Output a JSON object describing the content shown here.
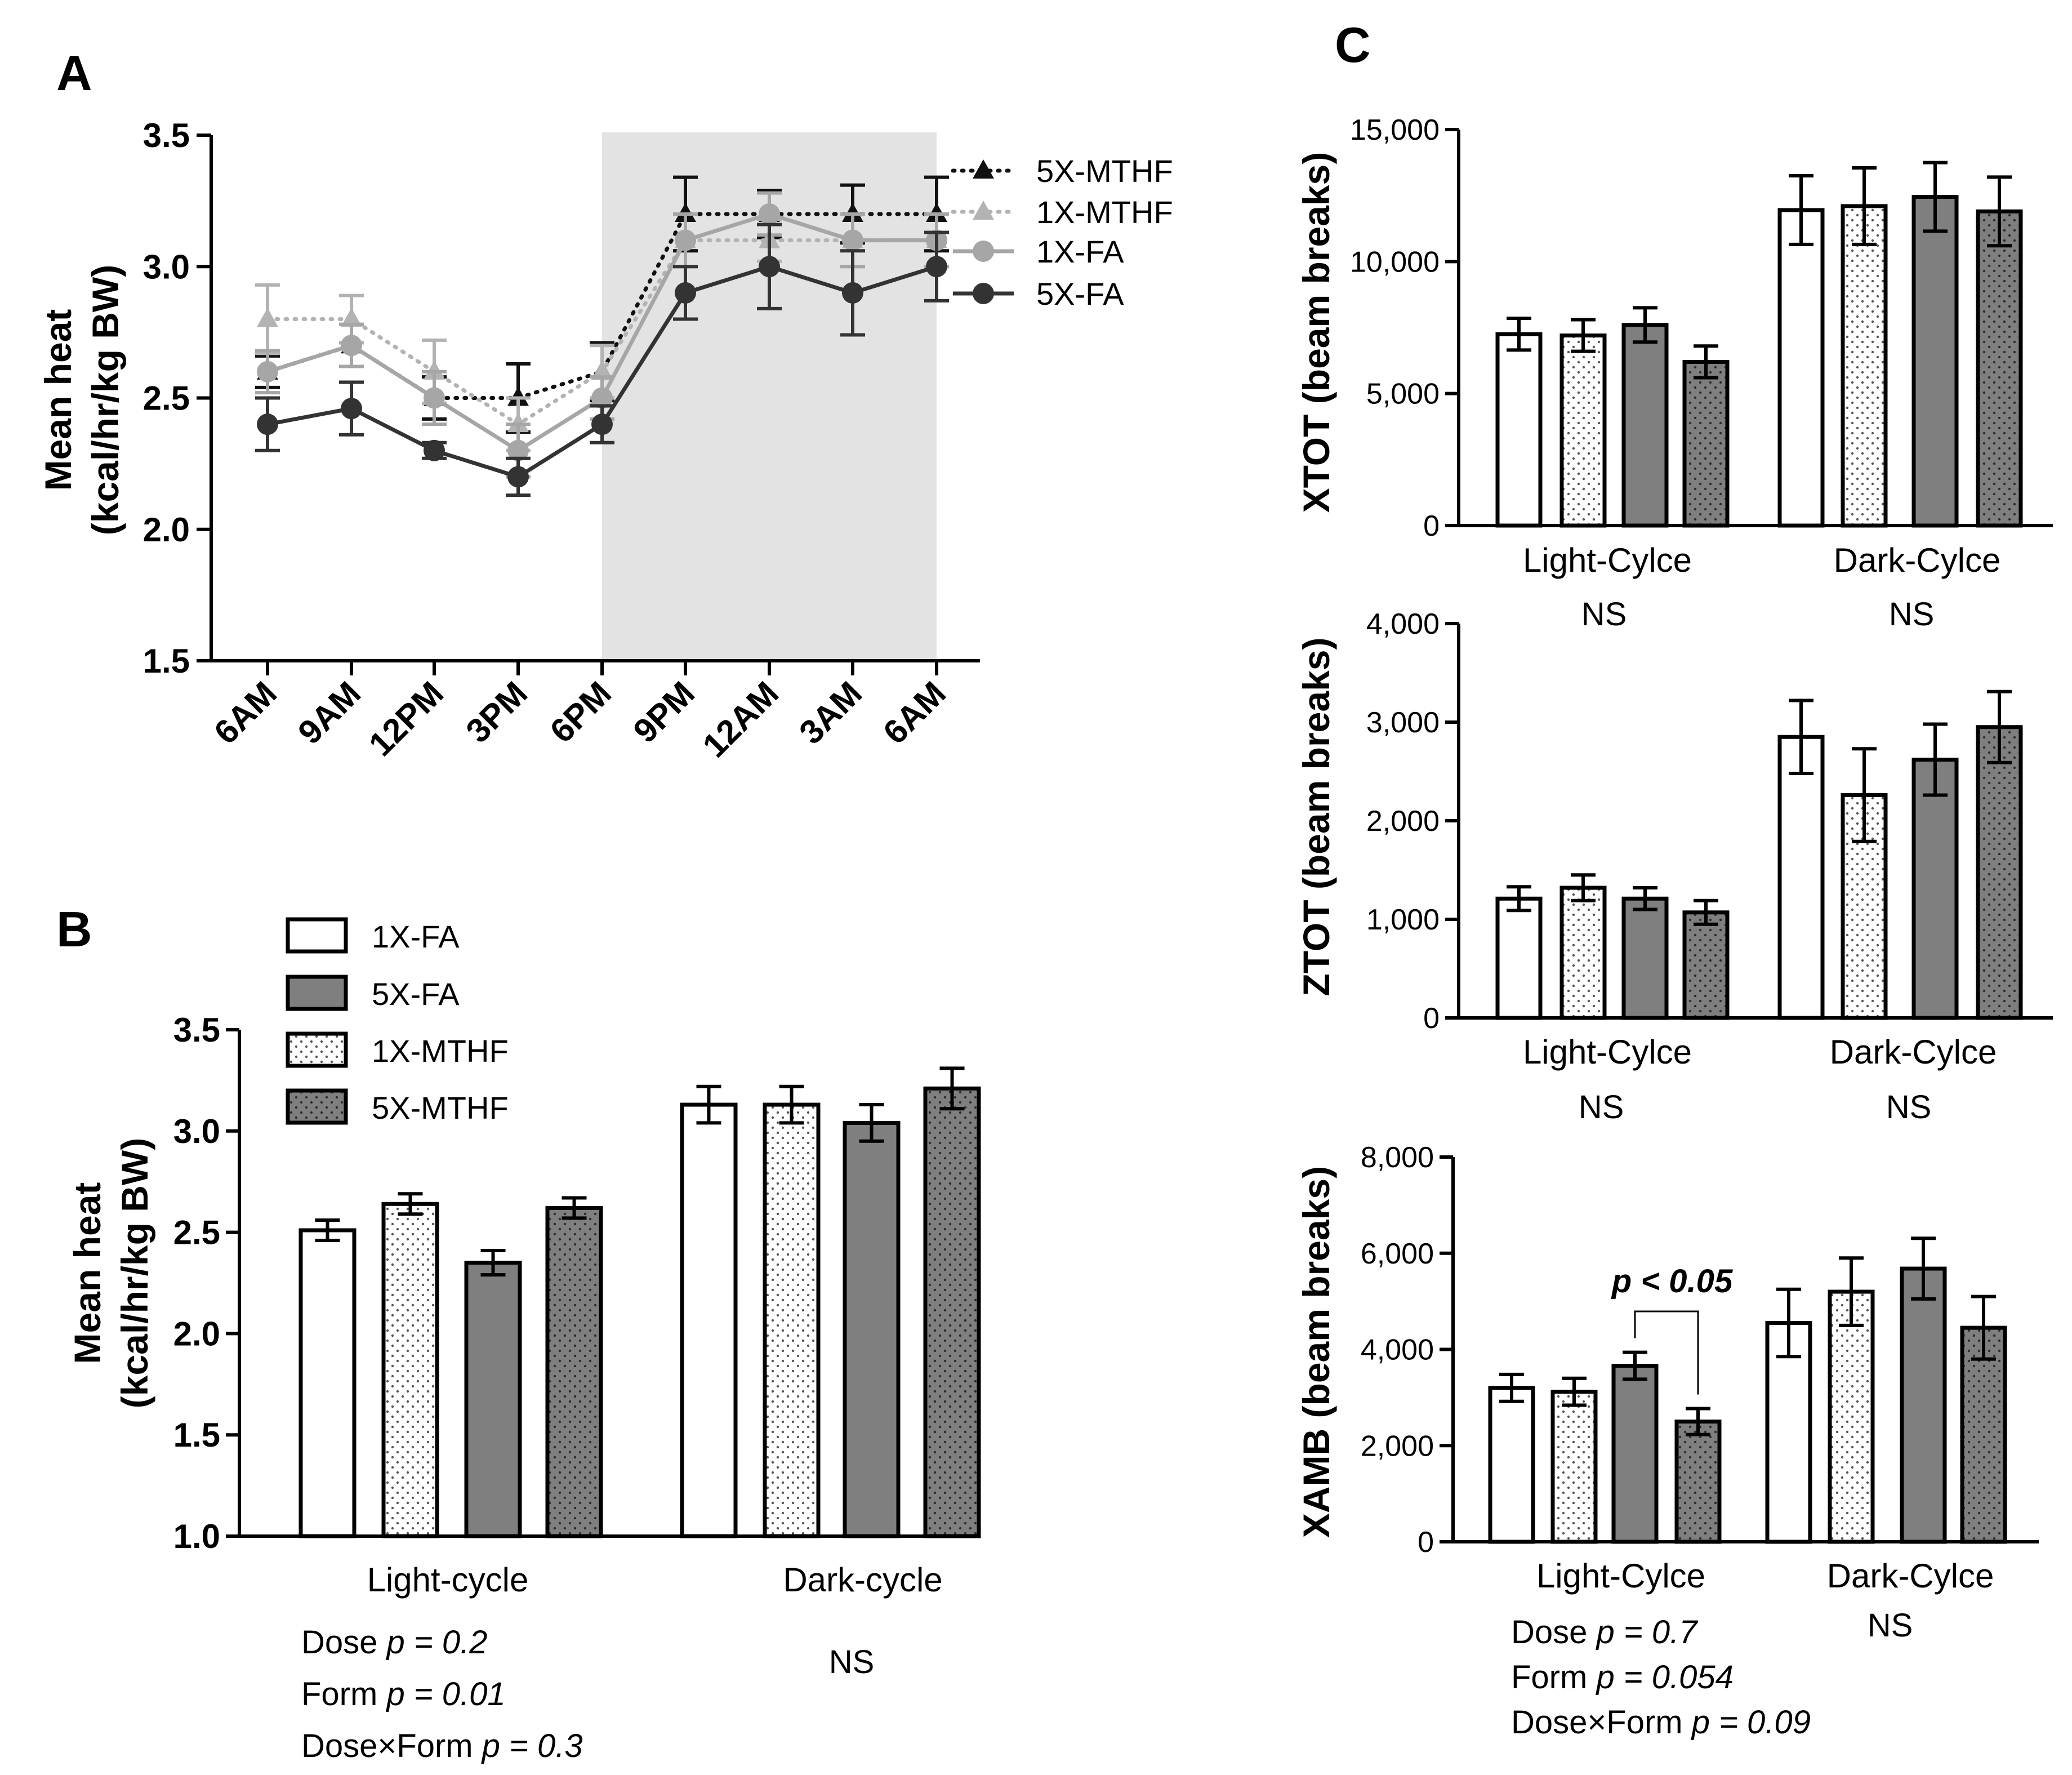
{
  "chart_data": [
    {
      "id": "A",
      "type": "line",
      "panel_label": "A",
      "ylabel": [
        "Mean heat",
        "(kcal/hr/kg BW)"
      ],
      "ylim": [
        1.5,
        3.5
      ],
      "yticks": [
        "1.5",
        "2.0",
        "2.5",
        "3.0",
        "3.5"
      ],
      "categories": [
        "6AM",
        "9AM",
        "12PM",
        "3PM",
        "6PM",
        "9PM",
        "12AM",
        "3AM",
        "6AM"
      ],
      "shaded": {
        "from_index": 4,
        "to_index": 8,
        "color": "#e3e3e3"
      },
      "series": [
        {
          "name": "5X-MTHF",
          "color": "#111111",
          "dash": "dotted",
          "marker": "triangle",
          "values": [
            2.6,
            2.7,
            2.5,
            2.5,
            2.6,
            3.2,
            3.2,
            3.2,
            3.2
          ],
          "errors": [
            0.06,
            0.08,
            0.08,
            0.13,
            0.11,
            0.14,
            0.09,
            0.11,
            0.14
          ]
        },
        {
          "name": "1X-MTHF",
          "color": "#b3b3b3",
          "dash": "dotted",
          "marker": "triangle",
          "values": [
            2.8,
            2.8,
            2.6,
            2.4,
            2.6,
            3.1,
            3.1,
            3.1,
            3.1
          ],
          "errors": [
            0.13,
            0.09,
            0.12,
            0.1,
            0.1,
            0.1,
            0.08,
            0.1,
            0.1
          ]
        },
        {
          "name": "1X-FA",
          "color": "#a6a6a6",
          "dash": "solid",
          "marker": "circle",
          "values": [
            2.6,
            2.7,
            2.5,
            2.3,
            2.5,
            3.1,
            3.2,
            3.1,
            3.1
          ],
          "errors": [
            0.08,
            0.08,
            0.1,
            0.1,
            0.08,
            0.1,
            0.08,
            0.1,
            0.1
          ]
        },
        {
          "name": "5X-FA",
          "color": "#333333",
          "dash": "solid",
          "marker": "circle",
          "values": [
            2.4,
            2.46,
            2.3,
            2.2,
            2.4,
            2.9,
            3.0,
            2.9,
            3.0
          ],
          "errors": [
            0.1,
            0.1,
            0.03,
            0.07,
            0.07,
            0.1,
            0.16,
            0.16,
            0.13
          ]
        }
      ]
    },
    {
      "id": "B",
      "type": "bar",
      "panel_label": "B",
      "ylabel": [
        "Mean heat",
        "(kcal/hr/kg BW)"
      ],
      "ylim": [
        1.0,
        3.5
      ],
      "yticks": [
        "1.0",
        "1.5",
        "2.0",
        "2.5",
        "3.0",
        "3.5"
      ],
      "categories": [
        "Light-cycle",
        "Dark-cycle"
      ],
      "legend": [
        "1X-FA",
        "5X-FA",
        "1X-MTHF",
        "5X-MTHF"
      ],
      "series": [
        {
          "name": "1X-FA",
          "fill": "white",
          "values": [
            2.51,
            3.13
          ],
          "errors": [
            0.05,
            0.09
          ]
        },
        {
          "name": "1X-MTHF",
          "fill": "dots-light",
          "values": [
            2.64,
            3.13
          ],
          "errors": [
            0.05,
            0.09
          ]
        },
        {
          "name": "5X-FA",
          "fill": "gray",
          "values": [
            2.35,
            3.04
          ],
          "errors": [
            0.06,
            0.09
          ]
        },
        {
          "name": "5X-MTHF",
          "fill": "dots-gray",
          "values": [
            2.62,
            3.21
          ],
          "errors": [
            0.05,
            0.1
          ]
        }
      ],
      "stats": {
        "light": [
          {
            "label": "Dose ",
            "p": "p = 0.2"
          },
          {
            "label": "Form ",
            "p": "p = 0.01"
          },
          {
            "label": "Dose×Form ",
            "p": "p = 0.3"
          }
        ],
        "dark": "NS"
      }
    },
    {
      "id": "C1",
      "type": "bar",
      "panel_label": "C",
      "ylabel": "XTOT (beam breaks)",
      "ylim": [
        0,
        15000
      ],
      "yticks": [
        "0",
        "5,000",
        "10,000",
        "15,000"
      ],
      "categories": [
        "Light-Cylce",
        "Dark-Cylce"
      ],
      "series": [
        {
          "name": "1X-FA",
          "fill": "white",
          "values": [
            7250,
            11950
          ],
          "errors": [
            600,
            1300
          ]
        },
        {
          "name": "1X-MTHF",
          "fill": "dots-light",
          "values": [
            7200,
            12100
          ],
          "errors": [
            600,
            1450
          ]
        },
        {
          "name": "5X-FA",
          "fill": "gray",
          "values": [
            7600,
            12450
          ],
          "errors": [
            650,
            1300
          ]
        },
        {
          "name": "5X-MTHF",
          "fill": "dots-gray",
          "values": [
            6200,
            11900
          ],
          "errors": [
            600,
            1300
          ]
        }
      ],
      "stats": {
        "light": "NS",
        "dark": "NS"
      }
    },
    {
      "id": "C2",
      "type": "bar",
      "ylabel": "ZTOT (beam breaks)",
      "ylim": [
        0,
        4000
      ],
      "yticks": [
        "0",
        "1,000",
        "2,000",
        "3,000",
        "4,000"
      ],
      "categories": [
        "Light-Cylce",
        "Dark-Cylce"
      ],
      "series": [
        {
          "name": "1X-FA",
          "fill": "white",
          "values": [
            1210,
            2850
          ],
          "errors": [
            120,
            370
          ]
        },
        {
          "name": "1X-MTHF",
          "fill": "dots-light",
          "values": [
            1320,
            2260
          ],
          "errors": [
            130,
            470
          ]
        },
        {
          "name": "5X-FA",
          "fill": "gray",
          "values": [
            1210,
            2620
          ],
          "errors": [
            110,
            360
          ]
        },
        {
          "name": "5X-MTHF",
          "fill": "dots-gray",
          "values": [
            1070,
            2950
          ],
          "errors": [
            120,
            360
          ]
        }
      ],
      "stats": {
        "light": "NS",
        "dark": "NS"
      }
    },
    {
      "id": "C3",
      "type": "bar",
      "ylabel": "XAMB (beam breaks)",
      "ylim": [
        0,
        8000
      ],
      "yticks": [
        "0",
        "2,000",
        "4,000",
        "6,000",
        "8,000"
      ],
      "categories": [
        "Light-Cylce",
        "Dark-Cylce"
      ],
      "series": [
        {
          "name": "1X-FA",
          "fill": "white",
          "values": [
            3200,
            4550
          ],
          "errors": [
            280,
            700
          ]
        },
        {
          "name": "1X-MTHF",
          "fill": "dots-light",
          "values": [
            3120,
            5200
          ],
          "errors": [
            280,
            700
          ]
        },
        {
          "name": "5X-FA",
          "fill": "gray",
          "values": [
            3660,
            5680
          ],
          "errors": [
            280,
            630
          ]
        },
        {
          "name": "5X-MTHF",
          "fill": "dots-gray",
          "values": [
            2500,
            4450
          ],
          "errors": [
            270,
            650
          ]
        }
      ],
      "annotation": {
        "text": "p < 0.05",
        "between": [
          2,
          3
        ],
        "category_index": 0
      },
      "stats": {
        "light": [
          {
            "label": "Dose ",
            "p": "p = 0.7"
          },
          {
            "label": "Form ",
            "p": "p = 0.054"
          },
          {
            "label": "Dose×Form ",
            "p": "p = 0.09"
          }
        ],
        "dark": "NS"
      }
    }
  ]
}
